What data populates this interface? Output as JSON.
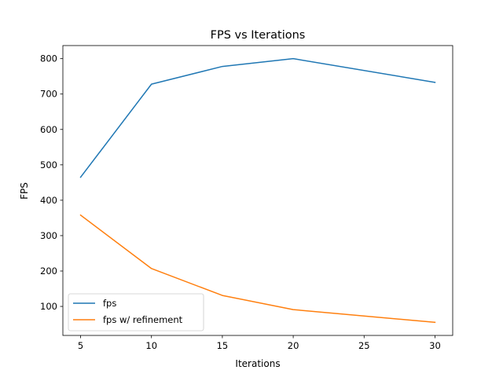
{
  "chart_data": {
    "type": "line",
    "title": "FPS vs Iterations",
    "xlabel": "Iterations",
    "ylabel": "FPS",
    "x": [
      5,
      10,
      15,
      20,
      30
    ],
    "series": [
      {
        "name": "fps",
        "color": "#1f77b4",
        "values": [
          465,
          728,
          778,
          800,
          733
        ]
      },
      {
        "name": "fps w/ refinement",
        "color": "#ff7f0e",
        "values": [
          358,
          207,
          131,
          91,
          55
        ]
      }
    ],
    "xlim": [
      3.75,
      31.25
    ],
    "ylim": [
      18,
      837
    ],
    "xticks": [
      5,
      10,
      15,
      20,
      25,
      30
    ],
    "yticks": [
      100,
      200,
      300,
      400,
      500,
      600,
      700,
      800
    ],
    "grid": false,
    "legend_position": "lower-left"
  }
}
